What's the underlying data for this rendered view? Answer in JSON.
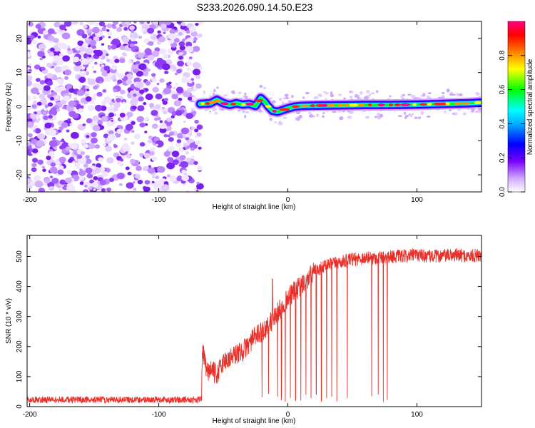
{
  "figure_title": "S233.2026.090.14.50.E23",
  "colors": {
    "signal_line": "#e8302a",
    "axis": "#000000"
  },
  "chart_data": [
    {
      "type": "heatmap",
      "title": "S233.2026.090.14.50.E23",
      "xlabel": "Height of straight line (km)",
      "ylabel": "Frequency (Hz)",
      "xlim": [
        -202,
        150
      ],
      "ylim": [
        -25,
        25
      ],
      "xticks": [
        -200,
        -100,
        0,
        100
      ],
      "xtick_labels": [
        "-200",
        "-100",
        "0",
        "100"
      ],
      "yticks": [
        -20,
        -10,
        0,
        10,
        20
      ],
      "ytick_labels": [
        "-20",
        "-10",
        "0",
        "10",
        "20"
      ],
      "noise_region_km": [
        -202,
        -68
      ],
      "signal_track": {
        "x": [
          -68,
          -60,
          -55,
          -50,
          -45,
          -40,
          -35,
          -30,
          -25,
          -21,
          -18,
          -15,
          -12,
          -8,
          -4,
          0,
          5,
          10,
          20,
          40,
          60,
          80,
          100,
          120,
          140,
          150
        ],
        "y": [
          0.8,
          1.0,
          2.0,
          1.0,
          0.5,
          1.0,
          0.6,
          0.8,
          0.2,
          2.5,
          1.5,
          0.0,
          -1.2,
          -1.5,
          -1.0,
          -0.5,
          0.0,
          0.2,
          0.3,
          0.4,
          0.5,
          0.5,
          0.6,
          0.8,
          1.0,
          1.2
        ]
      },
      "colorbar": {
        "label": "Normalized spectral amplitude",
        "range": [
          0,
          1
        ],
        "ticks": [
          0.0,
          0.2,
          0.4,
          0.6,
          0.8
        ],
        "tick_labels": [
          "0.0",
          "0.2",
          "0.4",
          "0.6",
          "0.8"
        ]
      }
    },
    {
      "type": "line",
      "xlabel": "Height of straight line (km)",
      "ylabel": "SNR (10 * v/v)",
      "xlim": [
        -202,
        150
      ],
      "ylim": [
        0,
        570
      ],
      "xticks": [
        -200,
        -100,
        0,
        100
      ],
      "xtick_labels": [
        "-200",
        "-100",
        "0",
        "100"
      ],
      "yticks": [
        0,
        100,
        200,
        300,
        400,
        500
      ],
      "ytick_labels": [
        "0",
        "100",
        "200",
        "300",
        "400",
        "500"
      ],
      "series": [
        {
          "name": "SNR",
          "x": [
            -202,
            -150,
            -100,
            -67,
            -66,
            -63,
            -60,
            -55,
            -50,
            -45,
            -40,
            -35,
            -30,
            -25,
            -20,
            -15,
            -10,
            -5,
            0,
            5,
            10,
            15,
            20,
            25,
            30,
            40,
            50,
            60,
            70,
            80,
            90,
            100,
            110,
            120,
            130,
            140,
            150
          ],
          "y": [
            20,
            21,
            22,
            22,
            195,
            110,
            125,
            105,
            150,
            160,
            175,
            185,
            210,
            235,
            250,
            270,
            300,
            330,
            360,
            385,
            400,
            420,
            450,
            460,
            470,
            480,
            490,
            495,
            495,
            500,
            500,
            505,
            500,
            502,
            505,
            500,
            505
          ]
        }
      ]
    }
  ]
}
